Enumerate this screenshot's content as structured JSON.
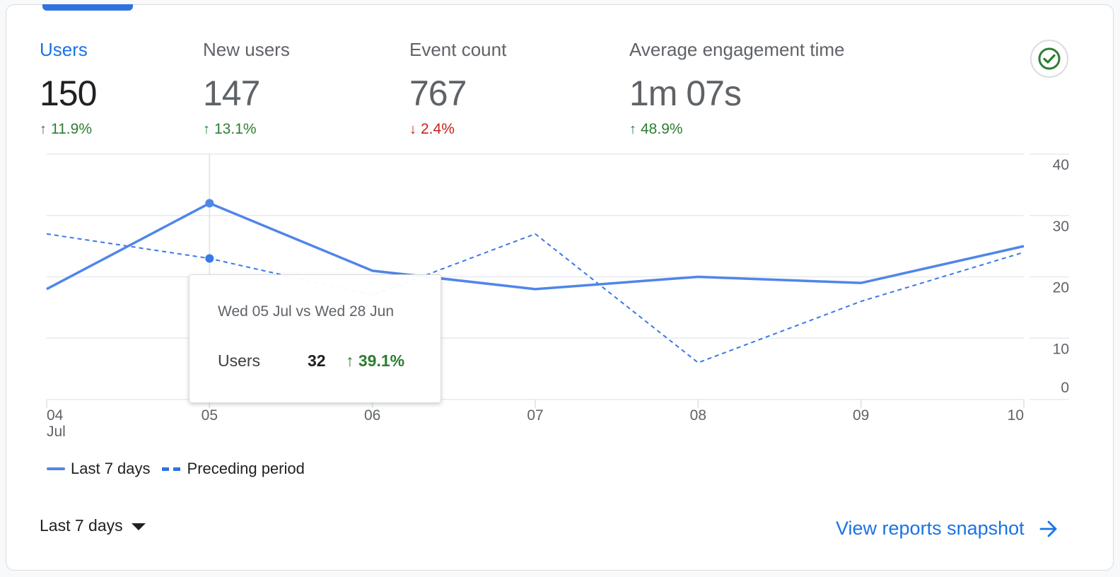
{
  "metrics": [
    {
      "label": "Users",
      "value": "150",
      "delta": "11.9%",
      "direction": "up",
      "active": true
    },
    {
      "label": "New users",
      "value": "147",
      "delta": "13.1%",
      "direction": "up",
      "active": false
    },
    {
      "label": "Event count",
      "value": "767",
      "delta": "2.4%",
      "direction": "down",
      "active": false
    },
    {
      "label": "Average engagement time",
      "value": "1m 07s",
      "delta": "48.9%",
      "direction": "up",
      "active": false
    }
  ],
  "icons": {
    "up_arrow": "↑",
    "down_arrow": "↓",
    "check": "check-circle-icon",
    "arrow_right": "arrow-right-icon",
    "dropdown": "caret-down-icon"
  },
  "colors": {
    "accent": "#1a73e8",
    "series_current": "#4f86e8",
    "series_previous": "#3b78e7",
    "positive": "#2e7d32",
    "negative": "#c5221f",
    "check": "#2e7d32"
  },
  "tooltip": {
    "title": "Wed 05 Jul vs Wed 28 Jun",
    "metric": "Users",
    "value": "32",
    "delta": "39.1%",
    "direction": "up"
  },
  "legend": {
    "current": "Last 7 days",
    "previous": "Preceding period"
  },
  "footer": {
    "date_range": "Last 7 days",
    "view_link": "View reports snapshot"
  },
  "chart_data": {
    "type": "line",
    "title": "",
    "xlabel": "",
    "ylabel": "Users",
    "x": [
      "04",
      "05",
      "06",
      "07",
      "08",
      "09",
      "10"
    ],
    "x_sublabels": [
      "Jul",
      "",
      "",
      "",
      "",
      "",
      ""
    ],
    "ylim": [
      0,
      40
    ],
    "yticks": [
      0,
      10,
      20,
      30,
      40
    ],
    "y_axis_side": "right",
    "grid": true,
    "legend_position": "bottom-left",
    "highlight_index": 1,
    "series": [
      {
        "name": "Last 7 days",
        "style": "solid",
        "values": [
          18,
          32,
          21,
          18,
          20,
          19,
          25
        ]
      },
      {
        "name": "Preceding period",
        "style": "dashed",
        "values": [
          27,
          23,
          17,
          27,
          6,
          16,
          24
        ]
      }
    ]
  }
}
